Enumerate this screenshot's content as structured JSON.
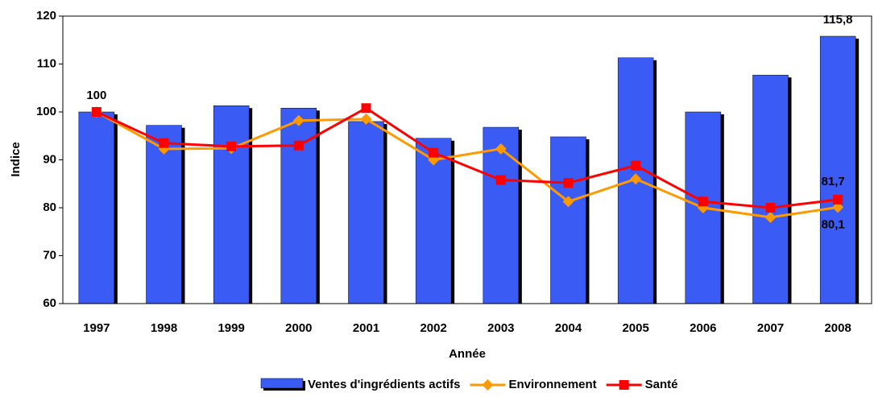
{
  "chart_data": {
    "type": "bar_line",
    "categories": [
      "1997",
      "1998",
      "1999",
      "2000",
      "2001",
      "2002",
      "2003",
      "2004",
      "2005",
      "2006",
      "2007",
      "2008"
    ],
    "series": [
      {
        "name": "Ventes d'ingrédients actifs",
        "type": "bar",
        "color": "#3a5cf5",
        "values": [
          100,
          97.2,
          101.3,
          100.8,
          98,
          94.5,
          96.8,
          94.8,
          111.3,
          100,
          107.7,
          115.8
        ],
        "value_labels": [
          "100",
          null,
          null,
          null,
          null,
          null,
          null,
          null,
          null,
          null,
          null,
          "115,8"
        ]
      },
      {
        "name": "Environnement",
        "type": "line",
        "color": "#ff9900",
        "values": [
          100,
          92.3,
          92.4,
          98.2,
          98.5,
          90,
          92.3,
          81.3,
          86,
          80,
          78,
          80.1
        ],
        "value_labels": [
          null,
          null,
          null,
          null,
          null,
          null,
          null,
          null,
          null,
          null,
          null,
          "80,1"
        ]
      },
      {
        "name": "Santé",
        "type": "line",
        "color": "#ff0000",
        "values": [
          100,
          93.5,
          92.8,
          93,
          100.8,
          91.5,
          85.8,
          85.2,
          88.8,
          81.3,
          80,
          81.7
        ],
        "value_labels": [
          null,
          null,
          null,
          null,
          null,
          null,
          null,
          null,
          null,
          null,
          null,
          "81,7"
        ]
      }
    ],
    "x_label": "Année",
    "y_label": "Indice",
    "ylim": [
      60,
      120
    ],
    "yticks": [
      60,
      70,
      80,
      90,
      100,
      110,
      120
    ],
    "grid": false,
    "legend": "bottom"
  }
}
